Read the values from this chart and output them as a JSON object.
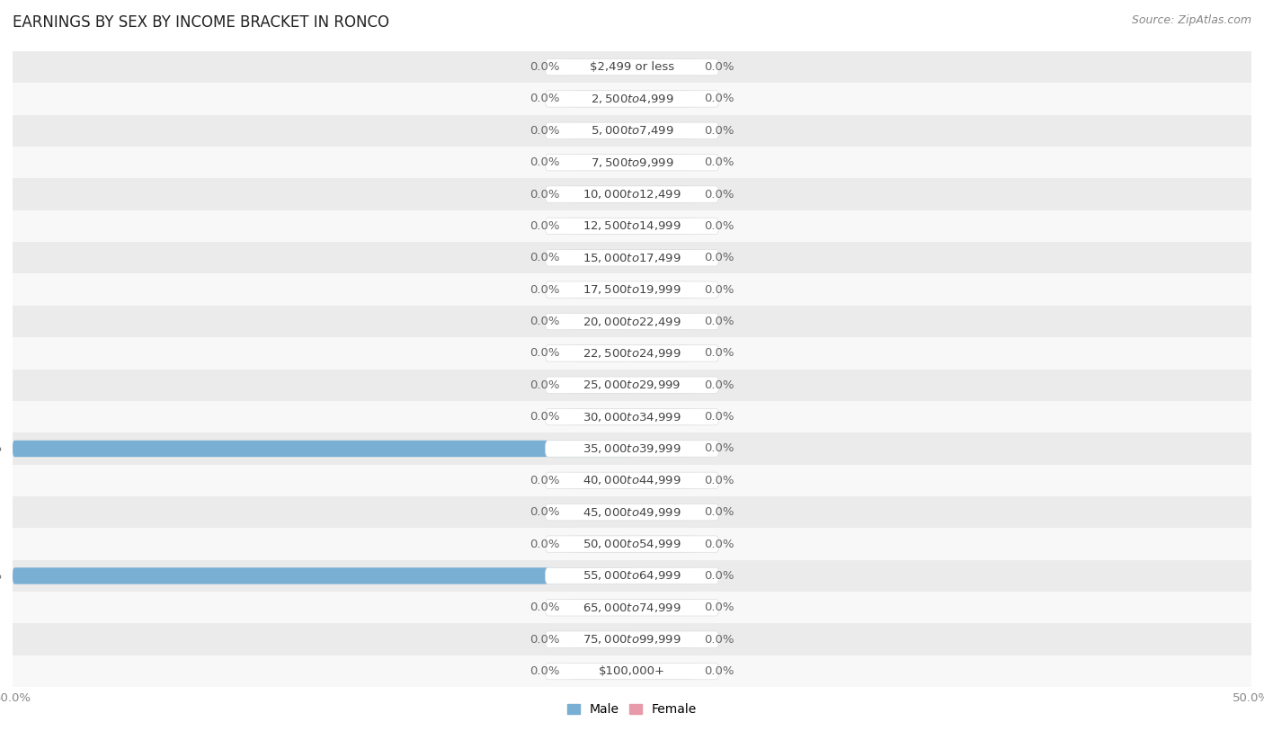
{
  "title": "EARNINGS BY SEX BY INCOME BRACKET IN RONCO",
  "source": "Source: ZipAtlas.com",
  "categories": [
    "$2,499 or less",
    "$2,500 to $4,999",
    "$5,000 to $7,499",
    "$7,500 to $9,999",
    "$10,000 to $12,499",
    "$12,500 to $14,999",
    "$15,000 to $17,499",
    "$17,500 to $19,999",
    "$20,000 to $22,499",
    "$22,500 to $24,999",
    "$25,000 to $29,999",
    "$30,000 to $34,999",
    "$35,000 to $39,999",
    "$40,000 to $44,999",
    "$45,000 to $49,999",
    "$50,000 to $54,999",
    "$55,000 to $64,999",
    "$65,000 to $74,999",
    "$75,000 to $99,999",
    "$100,000+"
  ],
  "male_values": [
    0.0,
    0.0,
    0.0,
    0.0,
    0.0,
    0.0,
    0.0,
    0.0,
    0.0,
    0.0,
    0.0,
    0.0,
    50.0,
    0.0,
    0.0,
    0.0,
    50.0,
    0.0,
    0.0,
    0.0
  ],
  "female_values": [
    0.0,
    0.0,
    0.0,
    0.0,
    0.0,
    0.0,
    0.0,
    0.0,
    0.0,
    0.0,
    0.0,
    0.0,
    0.0,
    0.0,
    0.0,
    0.0,
    0.0,
    0.0,
    0.0,
    0.0
  ],
  "male_color": "#7aafd4",
  "female_color": "#e89aaa",
  "male_stub_color": "#aacce4",
  "female_stub_color": "#f0b8c4",
  "label_color": "#666666",
  "category_bg": "#ffffff",
  "category_color": "#444444",
  "bg_row_even": "#ebebeb",
  "bg_row_odd": "#f8f8f8",
  "xlim": 50.0,
  "bar_height": 0.52,
  "stub_size": 5.0,
  "title_fontsize": 12,
  "label_fontsize": 9.5,
  "cat_fontsize": 9.5,
  "tick_fontsize": 9.5,
  "legend_fontsize": 10,
  "source_fontsize": 9
}
